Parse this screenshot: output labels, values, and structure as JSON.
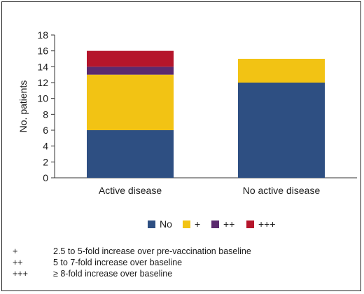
{
  "chart_data": {
    "type": "bar",
    "stacked": true,
    "categories": [
      "Active disease",
      "No active disease"
    ],
    "series": [
      {
        "name": "No",
        "color": "#2e4f82",
        "values": [
          6,
          12
        ]
      },
      {
        "name": "+",
        "color": "#f2c314",
        "values": [
          7,
          3
        ]
      },
      {
        "name": "++",
        "color": "#5b2a6e",
        "values": [
          1,
          0
        ]
      },
      {
        "name": "+++",
        "color": "#b5152b",
        "values": [
          2,
          0
        ]
      }
    ],
    "ylabel": "No. patients",
    "ylim": [
      0,
      18
    ],
    "yticks": [
      0,
      2,
      4,
      6,
      8,
      10,
      12,
      14,
      16,
      18
    ],
    "grid": false,
    "legend_position": "bottom"
  },
  "notes": [
    {
      "symbol": "+",
      "text": "2.5 to 5-fold increase over pre-vaccination baseline"
    },
    {
      "symbol": "++",
      "text": "5 to 7-fold increase over baseline"
    },
    {
      "symbol": "+++",
      "text": "≥ 8-fold increase over baseline"
    }
  ]
}
